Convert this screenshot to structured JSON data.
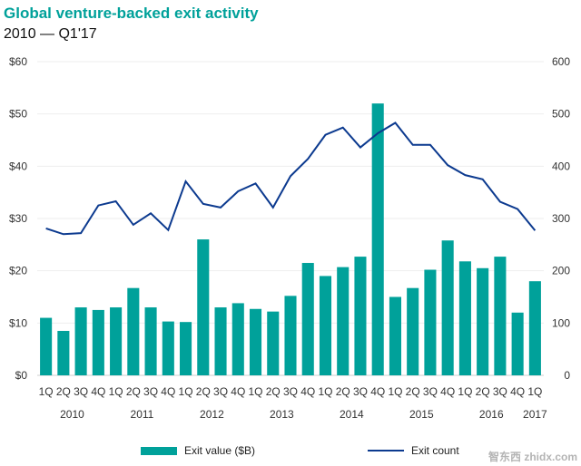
{
  "chart_data": {
    "type": "bar",
    "title": "Global venture-backed exit activity",
    "subtitle": "2010 — Q1'17",
    "categories": [
      "1Q",
      "2Q",
      "3Q",
      "4Q",
      "1Q",
      "2Q",
      "3Q",
      "4Q",
      "1Q",
      "2Q",
      "3Q",
      "4Q",
      "1Q",
      "2Q",
      "3Q",
      "4Q",
      "1Q",
      "2Q",
      "3Q",
      "4Q",
      "1Q",
      "2Q",
      "3Q",
      "4Q",
      "1Q",
      "2Q",
      "3Q",
      "4Q",
      "1Q"
    ],
    "years": [
      {
        "label": "2010",
        "start": 0,
        "end": 3
      },
      {
        "label": "2011",
        "start": 4,
        "end": 7
      },
      {
        "label": "2012",
        "start": 8,
        "end": 11
      },
      {
        "label": "2013",
        "start": 12,
        "end": 15
      },
      {
        "label": "2014",
        "start": 16,
        "end": 19
      },
      {
        "label": "2015",
        "start": 20,
        "end": 23
      },
      {
        "label": "2016",
        "start": 24,
        "end": 27
      },
      {
        "label": "2017",
        "start": 28,
        "end": 28
      }
    ],
    "series": [
      {
        "name": "Exit value ($B)",
        "type": "bar",
        "axis": "left",
        "color": "#00a19a",
        "values": [
          11,
          8.5,
          13,
          12.5,
          13,
          16.7,
          13,
          10.3,
          10.2,
          26,
          13,
          13.8,
          12.7,
          12.2,
          15.2,
          21.5,
          19,
          20.7,
          22.7,
          52,
          15,
          16.7,
          20.2,
          25.8,
          21.8,
          20.5,
          22.7,
          12,
          18
        ]
      },
      {
        "name": "Exit count",
        "type": "line",
        "axis": "right",
        "color": "#0c3a8f",
        "values": [
          281,
          270,
          272,
          325,
          333,
          288,
          310,
          278,
          371,
          328,
          321,
          352,
          367,
          321,
          381,
          414,
          460,
          474,
          436,
          463,
          483,
          441,
          441,
          402,
          383,
          375,
          332,
          318,
          277
        ]
      }
    ],
    "left_axis": {
      "ylim": [
        0,
        60
      ],
      "ticks": [
        "$0",
        "$10",
        "$20",
        "$30",
        "$40",
        "$50",
        "$60"
      ]
    },
    "right_axis": {
      "ylim": [
        0,
        600
      ],
      "ticks": [
        "0",
        "100",
        "200",
        "300",
        "400",
        "500",
        "600"
      ]
    },
    "grid": true,
    "legend": "bottom"
  },
  "watermark": "智东西 zhidx.com"
}
